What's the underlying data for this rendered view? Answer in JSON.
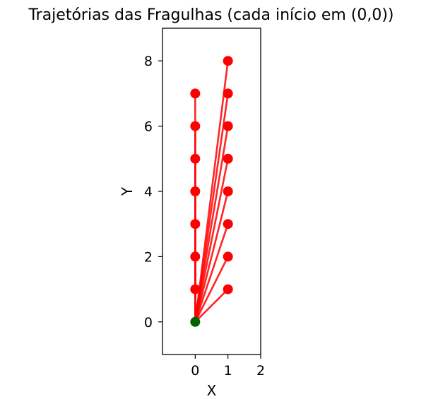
{
  "chart_data": {
    "type": "line",
    "title": "Trajetórias das Fragulhas (cada início em (0,0))",
    "xlabel": "X",
    "ylabel": "Y",
    "xlim": [
      -1,
      2
    ],
    "ylim": [
      -1,
      9
    ],
    "xticks": [
      0,
      1,
      2
    ],
    "yticks": [
      0,
      2,
      4,
      6,
      8
    ],
    "grid": false,
    "line_color": "#ff0000",
    "marker_color": "#ff0000",
    "origin_color": "#006400",
    "origin": [
      0,
      0
    ],
    "endpoints": [
      [
        0,
        1
      ],
      [
        0,
        2
      ],
      [
        0,
        3
      ],
      [
        0,
        4
      ],
      [
        0,
        5
      ],
      [
        0,
        6
      ],
      [
        0,
        7
      ],
      [
        1,
        1
      ],
      [
        1,
        2
      ],
      [
        1,
        3
      ],
      [
        1,
        4
      ],
      [
        1,
        5
      ],
      [
        1,
        6
      ],
      [
        1,
        7
      ],
      [
        1,
        8
      ]
    ]
  }
}
